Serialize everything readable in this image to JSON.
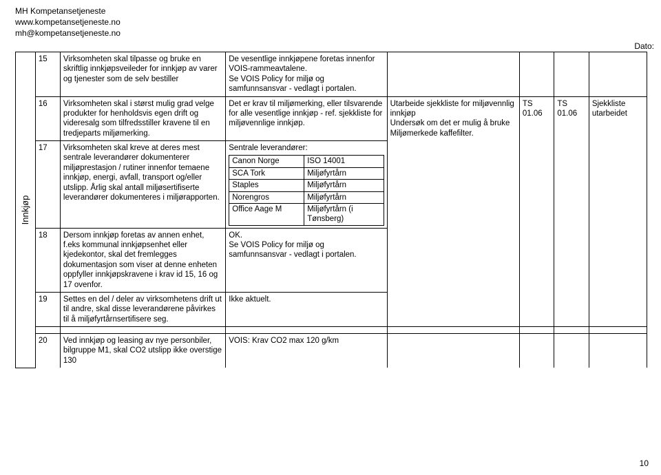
{
  "header": {
    "line1": "MH Kompetansetjeneste",
    "line2": "www.kompetansetjeneste.no",
    "line3": "mh@kompetansetjeneste.no"
  },
  "dato_label": "Dato:",
  "page_number": "10",
  "section_label": "Innkjøp",
  "rows": {
    "r15": {
      "num": "15",
      "desc": "Virksomheten skal tilpasse og bruke en skriftlig innkjøpsveileder for innkjøp av varer og tjenester som de selv bestiller",
      "notes": "De vesentlige innkjøpene foretas innenfor VOIS-rammeavtalene.\nSe VOIS Policy for miljø og samfunnsansvar - vedlagt i portalen."
    },
    "r16": {
      "num": "16",
      "desc": "Virksomheten skal i størst mulig grad velge produkter for henholdsvis egen drift og videresalg som tilfredsstiller kravene til en tredjeparts miljømerking.",
      "notes": "Det er krav til miljømerking, eller tilsvarende for alle vesentlige innkjøp - ref. sjekkliste for miljøvennlige innkjøp."
    },
    "r17": {
      "num": "17",
      "desc": "Virksomheten skal kreve at deres mest sentrale leverandører dokumenterer miljøprestasjon / rutiner innenfor temaene innkjøp, energi, avfall, transport og/eller utslipp. Årlig skal antall miljøsertifiserte leverandører dokumenteres i miljørapporten.",
      "notes_heading": "Sentrale leverandører:",
      "inner_table": {
        "columns": [
          "",
          ""
        ],
        "rows": [
          [
            "Canon Norge",
            "ISO 14001"
          ],
          [
            "SCA Tork",
            "Miljøfyrtårn"
          ],
          [
            "Staples",
            "Miljøfyrtårn"
          ],
          [
            "Norengros",
            "Miljøfyrtårn"
          ],
          [
            "Office Aage M",
            "Miljøfyrtårn (i Tønsberg)"
          ]
        ],
        "col_widths": [
          "85px",
          "90px"
        ]
      }
    },
    "r18": {
      "num": "18",
      "desc": "Dersom innkjøp foretas av annen enhet, f.eks kommunal innkjøpsenhet eller kjedekontor, skal det fremlegges dokumentasjon som viser at denne enheten oppfyller innkjøpskravene i krav id 15, 16 og 17 ovenfor.",
      "notes": "OK.\nSe VOIS Policy for miljø og samfunnsansvar - vedlagt i portalen."
    },
    "r19": {
      "num": "19",
      "desc": "Settes en del / deler av virksomhetens drift ut til andre, skal disse leverandørene påvirkes til å miljøfyrtårnsertifisere seg.",
      "notes": "Ikke aktuelt."
    },
    "merged_right": {
      "action": "Utarbeide sjekkliste for miljøvennlig innkjøp\nUndersøk om det er mulig å bruke Miljømerkede kaffefilter.",
      "ts1": "TS 01.06",
      "ts2": "TS 01.06",
      "status": "Sjekkliste utarbeidet"
    },
    "r20": {
      "num": "20",
      "desc": "Ved innkjøp og leasing av nye personbiler, bilgruppe M1, skal CO2 utslipp ikke overstige 130",
      "notes": "VOIS: Krav CO2 max 120 g/km"
    }
  }
}
